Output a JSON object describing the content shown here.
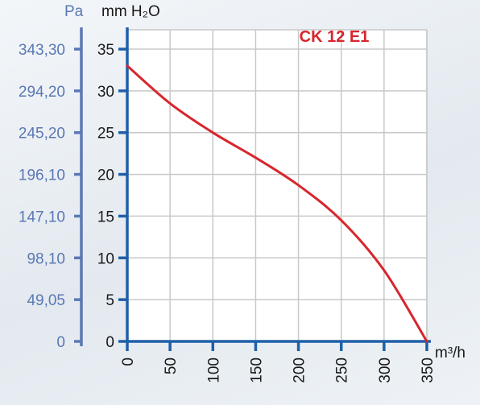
{
  "chart_data": {
    "type": "line",
    "title": "",
    "series": [
      {
        "name": "CK 12 E1",
        "color": "#d8262d",
        "x": [
          0,
          50,
          100,
          150,
          200,
          250,
          300,
          350
        ],
        "y": [
          33,
          28.5,
          25,
          22,
          18.7,
          14.5,
          8.5,
          0
        ]
      }
    ],
    "xlabel": "m³/h",
    "ylabel": "mm H₂O",
    "y2label": "Pa",
    "xlim": [
      0,
      350
    ],
    "ylim": [
      0,
      35
    ],
    "x_ticks": [
      "0",
      "50",
      "100",
      "150",
      "200",
      "250",
      "300",
      "350"
    ],
    "y_ticks": [
      "0",
      "5",
      "10",
      "15",
      "20",
      "25",
      "30",
      "35"
    ],
    "y2_ticks": [
      "0",
      "49,05",
      "98,10",
      "147,10",
      "196,10",
      "245,20",
      "294,20",
      "343,30"
    ],
    "grid": true,
    "axis_color": "#1f5fa8",
    "secondary_axis_color": "#5a78b4",
    "grid_color": "#c8c8c8"
  }
}
